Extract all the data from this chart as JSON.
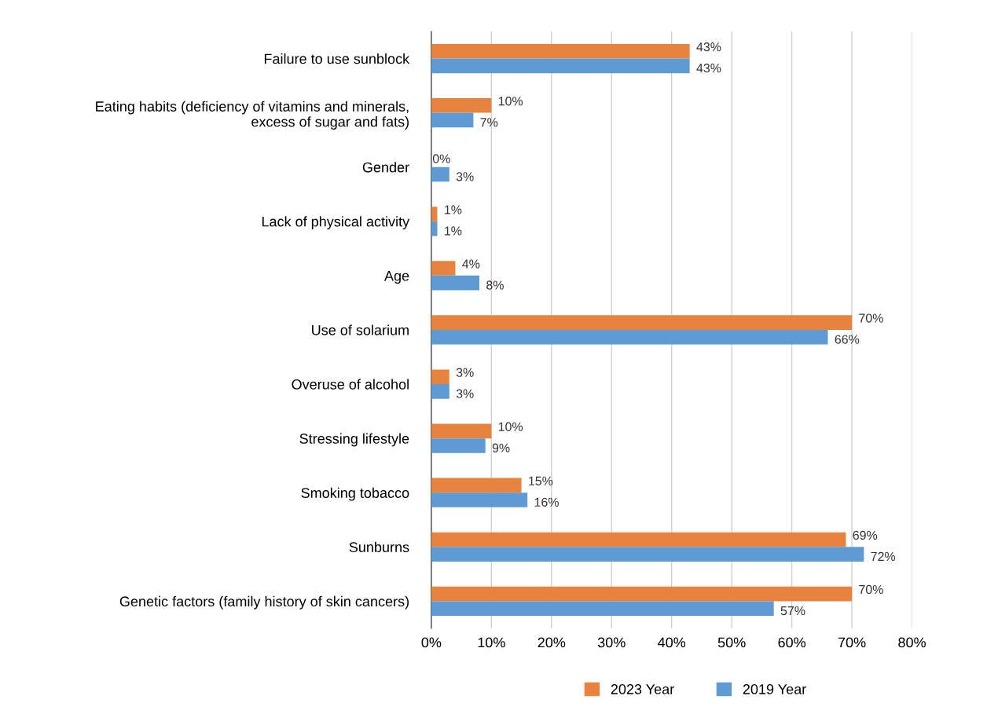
{
  "chart_data": {
    "type": "bar",
    "orientation": "horizontal",
    "categories": [
      "Failure to use sunblock",
      "Eating habits (deficiency of vitamins and minerals,\nexcess of sugar and fats)",
      "Gender",
      "Lack of physical activity",
      "Age",
      "Use of solarium",
      "Overuse of alcohol",
      "Stressing lifestyle",
      "Smoking tobacco",
      "Sunburns",
      "Genetic factors (family history of skin cancers)"
    ],
    "series": [
      {
        "name": "2023 Year",
        "color": "#e8833f",
        "values": [
          43,
          10,
          0,
          1,
          4,
          70,
          3,
          10,
          15,
          69,
          70
        ],
        "value_labels": [
          "43%",
          "10%",
          "0%",
          "1%",
          "4%",
          "70%",
          "3%",
          "10%",
          "15%",
          "69%",
          "70%"
        ]
      },
      {
        "name": "2019 Year",
        "color": "#5f9bd3",
        "values": [
          43,
          7,
          3,
          1,
          8,
          66,
          3,
          9,
          16,
          72,
          57
        ],
        "value_labels": [
          "43%",
          "7%",
          "3%",
          "1%",
          "8%",
          "66%",
          "3%",
          "9%",
          "16%",
          "72%",
          "57%"
        ]
      }
    ],
    "xlim": [
      0,
      80
    ],
    "xticks": [
      {
        "value": 0,
        "label": "0%"
      },
      {
        "value": 10,
        "label": "10%"
      },
      {
        "value": 20,
        "label": "20%"
      },
      {
        "value": 30,
        "label": "30%"
      },
      {
        "value": 40,
        "label": "40%"
      },
      {
        "value": 50,
        "label": "50%"
      },
      {
        "value": 60,
        "label": "60%"
      },
      {
        "value": 70,
        "label": "70%"
      },
      {
        "value": 80,
        "label": "80%"
      }
    ],
    "grid": "x",
    "legend": "bottom"
  }
}
